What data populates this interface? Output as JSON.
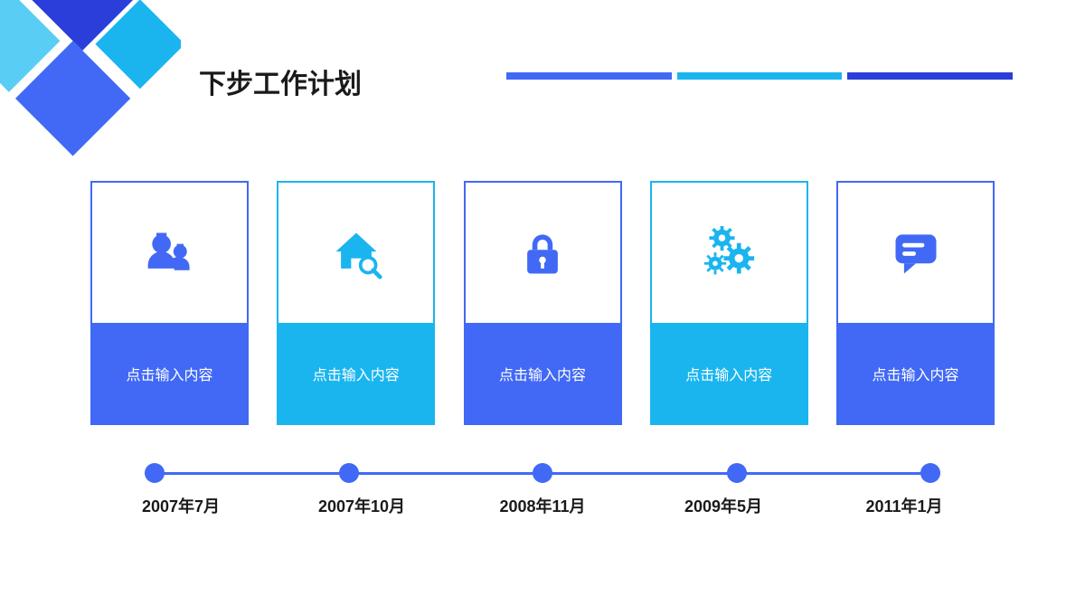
{
  "colors": {
    "blue": "#4169f5",
    "darkblue": "#2a3fd9",
    "cyan": "#1ab5ef",
    "lightcyan": "#5acdf4",
    "text": "#1a1a1a",
    "white": "#ffffff"
  },
  "title": "下步工作计划",
  "stripes": [
    "#4169f5",
    "#1ab5ef",
    "#2a3fd9"
  ],
  "cards": [
    {
      "icon": "people",
      "label": "点击输入内容",
      "color": "#4169f5"
    },
    {
      "icon": "house",
      "label": "点击输入内容",
      "color": "#1ab5ef"
    },
    {
      "icon": "lock",
      "label": "点击输入内容",
      "color": "#4169f5"
    },
    {
      "icon": "gears",
      "label": "点击输入内容",
      "color": "#1ab5ef"
    },
    {
      "icon": "chat",
      "label": "点击输入内容",
      "color": "#4169f5"
    }
  ],
  "timeline": {
    "dotColor": "#4169f5",
    "lineColor": "#4169f5",
    "labels": [
      "2007年7月",
      "2007年10月",
      "2008年11月",
      "2009年5月",
      "2011年1月"
    ]
  }
}
